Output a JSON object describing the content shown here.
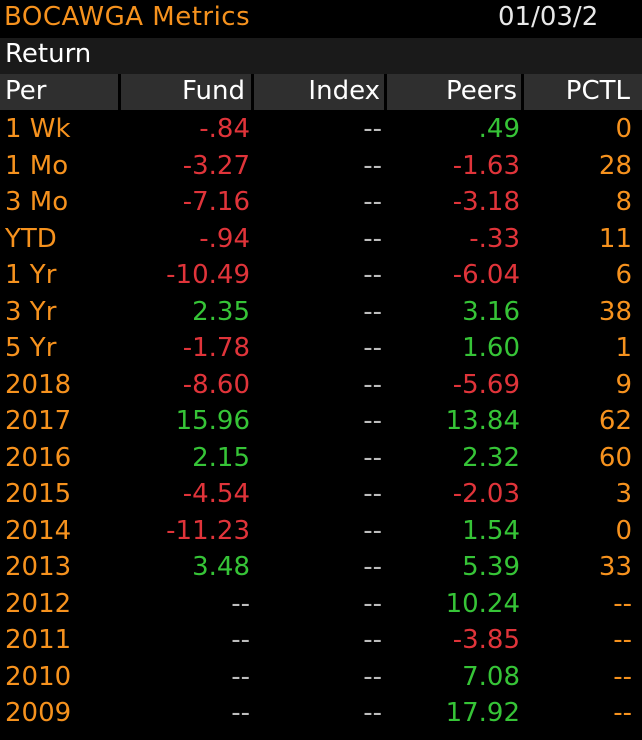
{
  "header": {
    "title": "BOCAWGA Metrics",
    "date": "01/03/2"
  },
  "section_label": "Return",
  "columns": {
    "per": "Per",
    "fund": "Fund",
    "index": "Index",
    "peers": "Peers",
    "pctl": "PCTL"
  },
  "colors": {
    "label": "#f6921e",
    "negative": "#e0343a",
    "positive": "#36c437",
    "dash": "#bdbdbd"
  },
  "rows": [
    {
      "per": "1 Wk",
      "fund": "-.84",
      "index": "--",
      "peers": ".49",
      "pctl": "0"
    },
    {
      "per": "1 Mo",
      "fund": "-3.27",
      "index": "--",
      "peers": "-1.63",
      "pctl": "28"
    },
    {
      "per": "3 Mo",
      "fund": "-7.16",
      "index": "--",
      "peers": "-3.18",
      "pctl": "8"
    },
    {
      "per": "YTD",
      "fund": "-.94",
      "index": "--",
      "peers": "-.33",
      "pctl": "11"
    },
    {
      "per": "1 Yr",
      "fund": "-10.49",
      "index": "--",
      "peers": "-6.04",
      "pctl": "6"
    },
    {
      "per": "3 Yr",
      "fund": "2.35",
      "index": "--",
      "peers": "3.16",
      "pctl": "38"
    },
    {
      "per": "5 Yr",
      "fund": "-1.78",
      "index": "--",
      "peers": "1.60",
      "pctl": "1"
    },
    {
      "per": "2018",
      "fund": "-8.60",
      "index": "--",
      "peers": "-5.69",
      "pctl": "9"
    },
    {
      "per": "2017",
      "fund": "15.96",
      "index": "--",
      "peers": "13.84",
      "pctl": "62"
    },
    {
      "per": "2016",
      "fund": "2.15",
      "index": "--",
      "peers": "2.32",
      "pctl": "60"
    },
    {
      "per": "2015",
      "fund": "-4.54",
      "index": "--",
      "peers": "-2.03",
      "pctl": "3"
    },
    {
      "per": "2014",
      "fund": "-11.23",
      "index": "--",
      "peers": "1.54",
      "pctl": "0"
    },
    {
      "per": "2013",
      "fund": "3.48",
      "index": "--",
      "peers": "5.39",
      "pctl": "33"
    },
    {
      "per": "2012",
      "fund": "--",
      "index": "--",
      "peers": "10.24",
      "pctl": "--"
    },
    {
      "per": "2011",
      "fund": "--",
      "index": "--",
      "peers": "-3.85",
      "pctl": "--"
    },
    {
      "per": "2010",
      "fund": "--",
      "index": "--",
      "peers": "7.08",
      "pctl": "--"
    },
    {
      "per": "2009",
      "fund": "--",
      "index": "--",
      "peers": "17.92",
      "pctl": "--"
    }
  ]
}
